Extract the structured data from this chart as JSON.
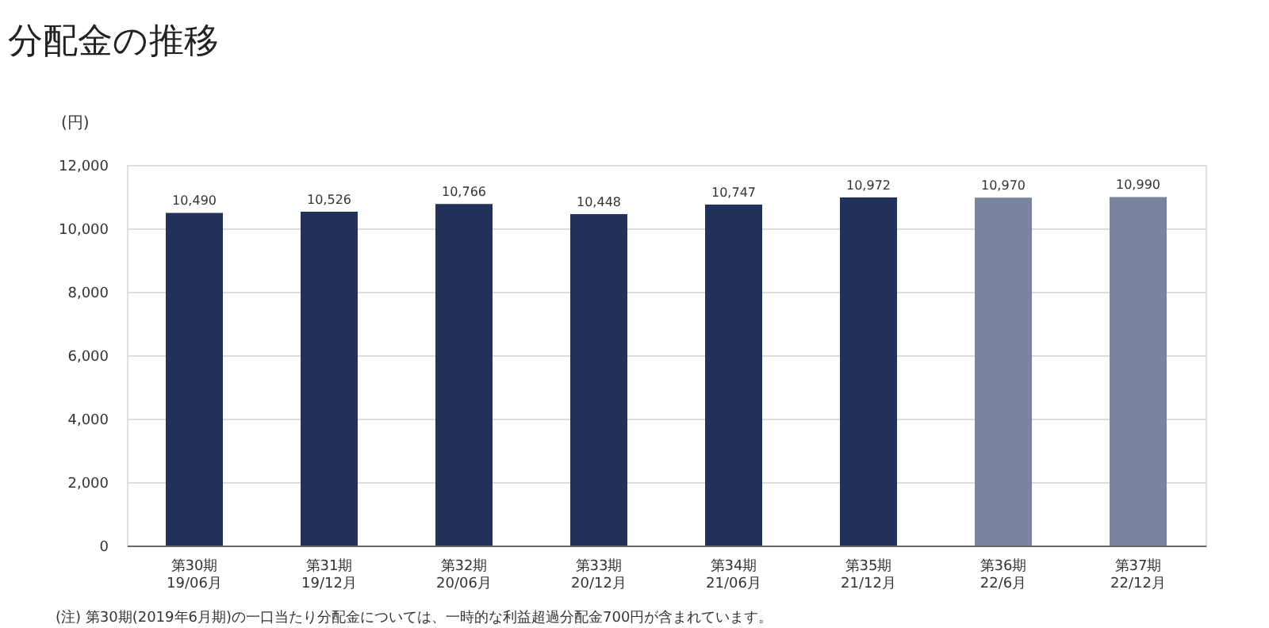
{
  "chart_data": {
    "type": "bar",
    "title": "分配金の推移",
    "ylabel": "(円)",
    "categories": [
      "第30期\n19/06月",
      "第31期\n19/12月",
      "第32期\n20/06月",
      "第33期\n20/12月",
      "第34期\n21/06月",
      "第35期\n21/12月",
      "第36期\n22/6月",
      "第37期\n22/12月"
    ],
    "values": [
      10490,
      10526,
      10766,
      10448,
      10747,
      10972,
      10970,
      10990
    ],
    "colors": [
      "#22325a",
      "#22325a",
      "#22325a",
      "#22325a",
      "#22325a",
      "#22325a",
      "#7a849f",
      "#7a849f"
    ],
    "value_labels": [
      "10,490",
      "10,526",
      "10,766",
      "10,448",
      "10,747",
      "10,972",
      "10,970",
      "10,990"
    ],
    "ylim": [
      0,
      12000
    ],
    "yticks": [
      0,
      {
        "value": 2000,
        "label": "2,000"
      },
      {
        "value": 4000,
        "label": "4,000"
      },
      {
        "value": 6000,
        "label": "6,000"
      },
      {
        "value": 8000,
        "label": "8,000"
      },
      {
        "value": 10000,
        "label": "10,000"
      },
      {
        "value": 12000,
        "label": "12,000"
      }
    ],
    "grid": "y",
    "annotations": [
      "(注) 第30期(2019年6月期)の一口当たり分配金については、一時的な利益超過分配金700円が含まれています。"
    ]
  }
}
